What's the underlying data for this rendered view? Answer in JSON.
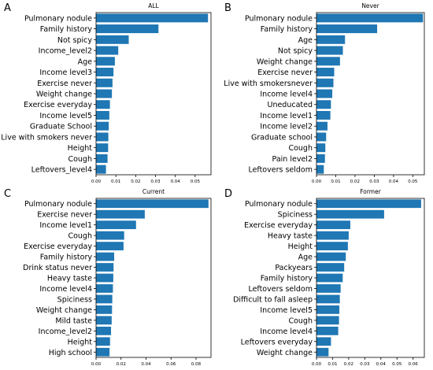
{
  "chart_data": [
    {
      "panel_letter": "A",
      "title": "ALL",
      "type": "bar",
      "orientation": "horizontal",
      "categories": [
        "Pulmonary nodule",
        "Family history",
        "Not spicy",
        "Income_level2",
        "Age",
        "Income level3",
        "Exercise never",
        "Weight change",
        "Exercise everyday",
        "Income level5",
        "Graduate School",
        "Live with smokers never",
        "Height",
        "Cough",
        "Leftovers_level4"
      ],
      "values": [
        0.0565,
        0.0315,
        0.0165,
        0.0112,
        0.0095,
        0.0088,
        0.0083,
        0.008,
        0.007,
        0.0067,
        0.0064,
        0.0062,
        0.0061,
        0.0058,
        0.005
      ],
      "xlim": [
        0,
        0.058
      ],
      "xticks": [
        0.0,
        0.01,
        0.02,
        0.03,
        0.04,
        0.05
      ],
      "xticklabels": [
        "0.00",
        "0.01",
        "0.02",
        "0.03",
        "0.04",
        "0.05"
      ],
      "color": "#1f77b4"
    },
    {
      "panel_letter": "B",
      "title": "Never",
      "type": "bar",
      "orientation": "horizontal",
      "categories": [
        "Pulmonary nodule",
        "Family history",
        "Age",
        "Not spicy",
        "Weight change",
        "Exercise never",
        "Live with smokersnever",
        "Income level4",
        "Uneducated",
        "Income level1",
        "Income level2",
        "Graduate school",
        "Cough",
        "Pain level2",
        "Leftovers seldom"
      ],
      "values": [
        0.0553,
        0.0315,
        0.0148,
        0.0137,
        0.0122,
        0.0092,
        0.0088,
        0.0082,
        0.0075,
        0.0072,
        0.0057,
        0.005,
        0.0046,
        0.0044,
        0.0038
      ],
      "xlim": [
        0,
        0.056
      ],
      "xticks": [
        0.0,
        0.01,
        0.02,
        0.03,
        0.04,
        0.05
      ],
      "xticklabels": [
        "0.00",
        "0.01",
        "0.02",
        "0.03",
        "0.04",
        "0.05"
      ],
      "color": "#1f77b4"
    },
    {
      "panel_letter": "C",
      "title": "Current",
      "type": "bar",
      "orientation": "horizontal",
      "categories": [
        "Pulmonary nodule",
        "Exercise never",
        "Income level1",
        "Cough",
        "Exercise everyday",
        "Family history",
        "Drink status never",
        "Heavy taste",
        "Income level4",
        "Spiciness",
        "Weight change",
        "Mild taste",
        "Income_level2",
        "Height",
        "High school"
      ],
      "values": [
        0.09,
        0.039,
        0.032,
        0.0225,
        0.022,
        0.0145,
        0.014,
        0.0138,
        0.0135,
        0.013,
        0.0128,
        0.0125,
        0.012,
        0.0112,
        0.0108
      ],
      "xlim": [
        0,
        0.092
      ],
      "xticks": [
        0.0,
        0.02,
        0.04,
        0.06,
        0.08
      ],
      "xticklabels": [
        "0.00",
        "0.02",
        "0.04",
        "0.06",
        "0.08"
      ],
      "color": "#1f77b4"
    },
    {
      "panel_letter": "D",
      "title": "Former",
      "type": "bar",
      "orientation": "horizontal",
      "categories": [
        "Pulmonary nodule",
        "Spiciness",
        "Exercise everyday",
        "Heavy taste",
        "Height",
        "Age",
        "Packyears",
        "Family history",
        "Leftovers seldom",
        "Difficult to fall asleep",
        "Income level5",
        "Cough",
        "Income level4",
        "Leftovers everyday",
        "Weight change"
      ],
      "values": [
        0.065,
        0.042,
        0.021,
        0.02,
        0.0195,
        0.0182,
        0.0172,
        0.0163,
        0.015,
        0.0145,
        0.0142,
        0.014,
        0.0135,
        0.009,
        0.0075
      ],
      "xlim": [
        0,
        0.067
      ],
      "xticks": [
        0.0,
        0.01,
        0.02,
        0.03,
        0.04,
        0.05,
        0.06
      ],
      "xticklabels": [
        "0.00",
        "0.01",
        "0.02",
        "0.03",
        "0.04",
        "0.05",
        "0.06"
      ],
      "color": "#1f77b4"
    }
  ]
}
